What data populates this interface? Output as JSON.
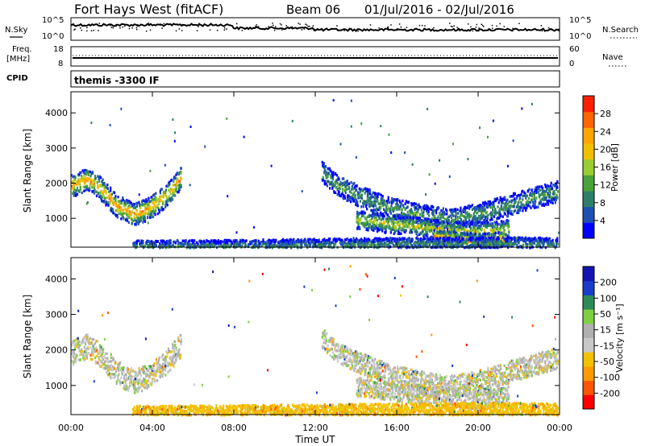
{
  "header": {
    "radar": "Fort Hays West (fitACF)",
    "beam": "Beam 06",
    "dates": "01/Jul/2016 - 02/Jul/2016"
  },
  "top_panels": {
    "nsky_label": "N.Sky",
    "nsky_ticks": [
      "10^5",
      "10^0"
    ],
    "nsearch_label": "N.Search",
    "nsearch_ticks": [
      "10^5",
      "10^0"
    ],
    "freq_label": "Freq.",
    "freq_unit": "[MHz]",
    "freq_ticks": [
      "18",
      "8"
    ],
    "nave_label": "Nave",
    "nave_ticks": [
      "60",
      "0"
    ],
    "cpid_label": "CPID",
    "cpid_value": "themis -3300 IF"
  },
  "axes": {
    "ylabel": "Slant Range [km]",
    "xlabel": "Time UT",
    "yticks": [
      "4000",
      "3000",
      "2000",
      "1000"
    ],
    "xticks": [
      "00:00",
      "04:00",
      "08:00",
      "12:00",
      "16:00",
      "20:00",
      "00:00"
    ]
  },
  "colors": {
    "power": [
      "#0000ff",
      "#1e50b4",
      "#2e7f6a",
      "#4aa23a",
      "#9acd32",
      "#f0c000",
      "#ffa500",
      "#ff6400",
      "#ff2000"
    ],
    "velocity": [
      "#ff0000",
      "#ff5500",
      "#ff9900",
      "#f2c200",
      "#c8c8c8",
      "#b0b0b0",
      "#7fd040",
      "#2e8b57",
      "#1a3ccc",
      "#1414b4"
    ]
  },
  "colorbars": {
    "power": {
      "label": "Power [dB]",
      "ticks": [
        "28",
        "24",
        "20",
        "16",
        "12",
        "8",
        "4"
      ]
    },
    "velocity": {
      "label": "Velocity [m s⁻¹]",
      "ticks": [
        "200",
        "100",
        "50",
        "15",
        "-15",
        "-50",
        "-100",
        "-200"
      ]
    }
  },
  "chart_data": [
    {
      "type": "heatmap",
      "name": "power",
      "x_range_hours": [
        0,
        24
      ],
      "ylim": [
        180,
        4600
      ],
      "ylabel": "Slant Range [km]",
      "colorbar": {
        "label": "Power [dB]",
        "min": 0,
        "max": 32
      },
      "bands": [
        {
          "t0": 0.0,
          "t1": 5.4,
          "points": [
            [
              0.0,
              1950
            ],
            [
              0.8,
              2150
            ],
            [
              1.4,
              1900
            ],
            [
              2.2,
              1400
            ],
            [
              3.0,
              1150
            ],
            [
              3.6,
              1250
            ],
            [
              4.4,
              1550
            ],
            [
              5.0,
              1900
            ],
            [
              5.4,
              2200
            ]
          ],
          "width": 320,
          "core": 24
        },
        {
          "t0": 12.3,
          "t1": 23.9,
          "points": [
            [
              12.3,
              2350
            ],
            [
              13.0,
              2000
            ],
            [
              14.0,
              1700
            ],
            [
              15.5,
              1350
            ],
            [
              17.0,
              1150
            ],
            [
              18.5,
              1000
            ],
            [
              20.0,
              1150
            ],
            [
              22.0,
              1500
            ],
            [
              23.9,
              1800
            ]
          ],
          "width": 300,
          "core": 12
        },
        {
          "t0": 14.0,
          "t1": 21.5,
          "points": [
            [
              14.0,
              1000
            ],
            [
              15.5,
              880
            ],
            [
              17.0,
              800
            ],
            [
              18.5,
              700
            ],
            [
              19.5,
              650
            ],
            [
              21.0,
              680
            ],
            [
              21.5,
              760
            ]
          ],
          "width": 260,
          "core": 18
        },
        {
          "t0": 17.8,
          "t1": 21.3,
          "points": [
            [
              17.8,
              500
            ],
            [
              18.6,
              450
            ],
            [
              19.3,
              420
            ],
            [
              20.0,
              380
            ],
            [
              20.6,
              400
            ],
            [
              21.3,
              450
            ]
          ],
          "width": 220,
          "core": 27
        },
        {
          "t0": 3.0,
          "t1": 23.9,
          "points": [
            [
              3.0,
              220
            ],
            [
              8.0,
              240
            ],
            [
              12.0,
              270
            ],
            [
              16.0,
              300
            ],
            [
              20.0,
              320
            ],
            [
              23.9,
              300
            ]
          ],
          "width": 180,
          "core": 10
        }
      ]
    },
    {
      "type": "heatmap",
      "name": "velocity",
      "x_range_hours": [
        0,
        24
      ],
      "ylim": [
        180,
        4600
      ],
      "ylabel": "Slant Range [km]",
      "xlabel": "Time UT",
      "colorbar": {
        "label": "Velocity [m s⁻¹]",
        "min": -250,
        "max": 250
      },
      "bands": [
        {
          "t0": 0.0,
          "t1": 5.4,
          "points": [
            [
              0.0,
              1950
            ],
            [
              0.8,
              2150
            ],
            [
              1.4,
              1900
            ],
            [
              2.2,
              1400
            ],
            [
              3.0,
              1150
            ],
            [
              3.6,
              1250
            ],
            [
              4.4,
              1550
            ],
            [
              5.0,
              1900
            ],
            [
              5.4,
              2200
            ]
          ],
          "width": 340,
          "core": 0
        },
        {
          "t0": 12.3,
          "t1": 23.9,
          "points": [
            [
              12.3,
              2350
            ],
            [
              13.0,
              2000
            ],
            [
              14.0,
              1700
            ],
            [
              15.5,
              1350
            ],
            [
              17.0,
              1150
            ],
            [
              18.5,
              1000
            ],
            [
              20.0,
              1150
            ],
            [
              22.0,
              1500
            ],
            [
              23.9,
              1800
            ]
          ],
          "width": 300,
          "core": 0
        },
        {
          "t0": 14.0,
          "t1": 21.5,
          "points": [
            [
              14.0,
              1000
            ],
            [
              15.5,
              880
            ],
            [
              17.0,
              800
            ],
            [
              18.5,
              700
            ],
            [
              19.5,
              650
            ],
            [
              21.0,
              680
            ],
            [
              21.5,
              760
            ]
          ],
          "width": 260,
          "core": 0
        },
        {
          "t0": 3.0,
          "t1": 23.9,
          "points": [
            [
              3.0,
              260
            ],
            [
              8.0,
              280
            ],
            [
              12.0,
              300
            ],
            [
              16.0,
              330
            ],
            [
              20.0,
              350
            ],
            [
              23.9,
              330
            ]
          ],
          "width": 200,
          "core": -35
        }
      ]
    }
  ]
}
